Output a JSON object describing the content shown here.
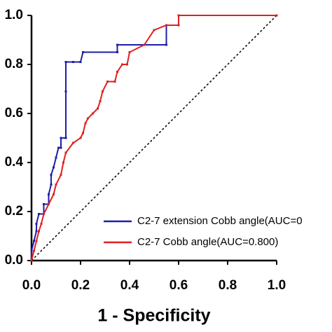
{
  "chart_data": {
    "type": "line",
    "xlabel": "1 - Specificity",
    "xlim": [
      0,
      1
    ],
    "ylim": [
      0,
      1
    ],
    "xticks": [
      {
        "value": 0,
        "label": "0.0"
      },
      {
        "value": 0.2,
        "label": "0.2"
      },
      {
        "value": 0.4,
        "label": "0.4"
      },
      {
        "value": 0.6,
        "label": "0.6"
      },
      {
        "value": 0.8,
        "label": "0.8"
      },
      {
        "value": 1,
        "label": "1.0"
      }
    ],
    "yticks": [
      {
        "value": 0,
        "label": "0.0"
      },
      {
        "value": 0.2,
        "label": "0.2"
      },
      {
        "value": 0.4,
        "label": "0.4"
      },
      {
        "value": 0.6,
        "label": "0.6"
      },
      {
        "value": 0.8,
        "label": "0.8"
      },
      {
        "value": 1,
        "label": "1.0"
      }
    ],
    "legend": "lower right",
    "series": [
      {
        "name": "C2-7 extension Cobb angle(AUC=0",
        "color": "#1f1fa8",
        "x": [
          0,
          0,
          0.01,
          0.02,
          0.02,
          0.03,
          0.05,
          0.05,
          0.07,
          0.07,
          0.08,
          0.08,
          0.09,
          0.1,
          0.11,
          0.12,
          0.12,
          0.14,
          0.14,
          0.14,
          0.17,
          0.2,
          0.21,
          0.35,
          0.35,
          0.55,
          0.55,
          0.6,
          0.6,
          1
        ],
        "values": [
          0,
          0.04,
          0.08,
          0.12,
          0.15,
          0.19,
          0.19,
          0.23,
          0.23,
          0.27,
          0.31,
          0.35,
          0.38,
          0.42,
          0.46,
          0.46,
          0.5,
          0.5,
          0.69,
          0.81,
          0.81,
          0.81,
          0.85,
          0.85,
          0.88,
          0.88,
          0.96,
          0.96,
          1,
          1
        ]
      },
      {
        "name": "C2-7 Cobb angle(AUC=0.800)",
        "color": "#e02020",
        "x": [
          0,
          0.01,
          0.02,
          0.03,
          0.04,
          0.05,
          0.07,
          0.09,
          0.1,
          0.12,
          0.13,
          0.14,
          0.17,
          0.2,
          0.21,
          0.22,
          0.23,
          0.25,
          0.27,
          0.28,
          0.29,
          0.31,
          0.34,
          0.35,
          0.37,
          0.39,
          0.4,
          0.46,
          0.5,
          0.55,
          0.6,
          0.6,
          1
        ],
        "values": [
          0,
          0.04,
          0.08,
          0.12,
          0.15,
          0.19,
          0.23,
          0.27,
          0.31,
          0.35,
          0.4,
          0.44,
          0.48,
          0.5,
          0.52,
          0.56,
          0.58,
          0.6,
          0.62,
          0.65,
          0.69,
          0.73,
          0.73,
          0.77,
          0.8,
          0.8,
          0.85,
          0.88,
          0.94,
          0.96,
          0.96,
          1,
          1
        ]
      }
    ]
  }
}
